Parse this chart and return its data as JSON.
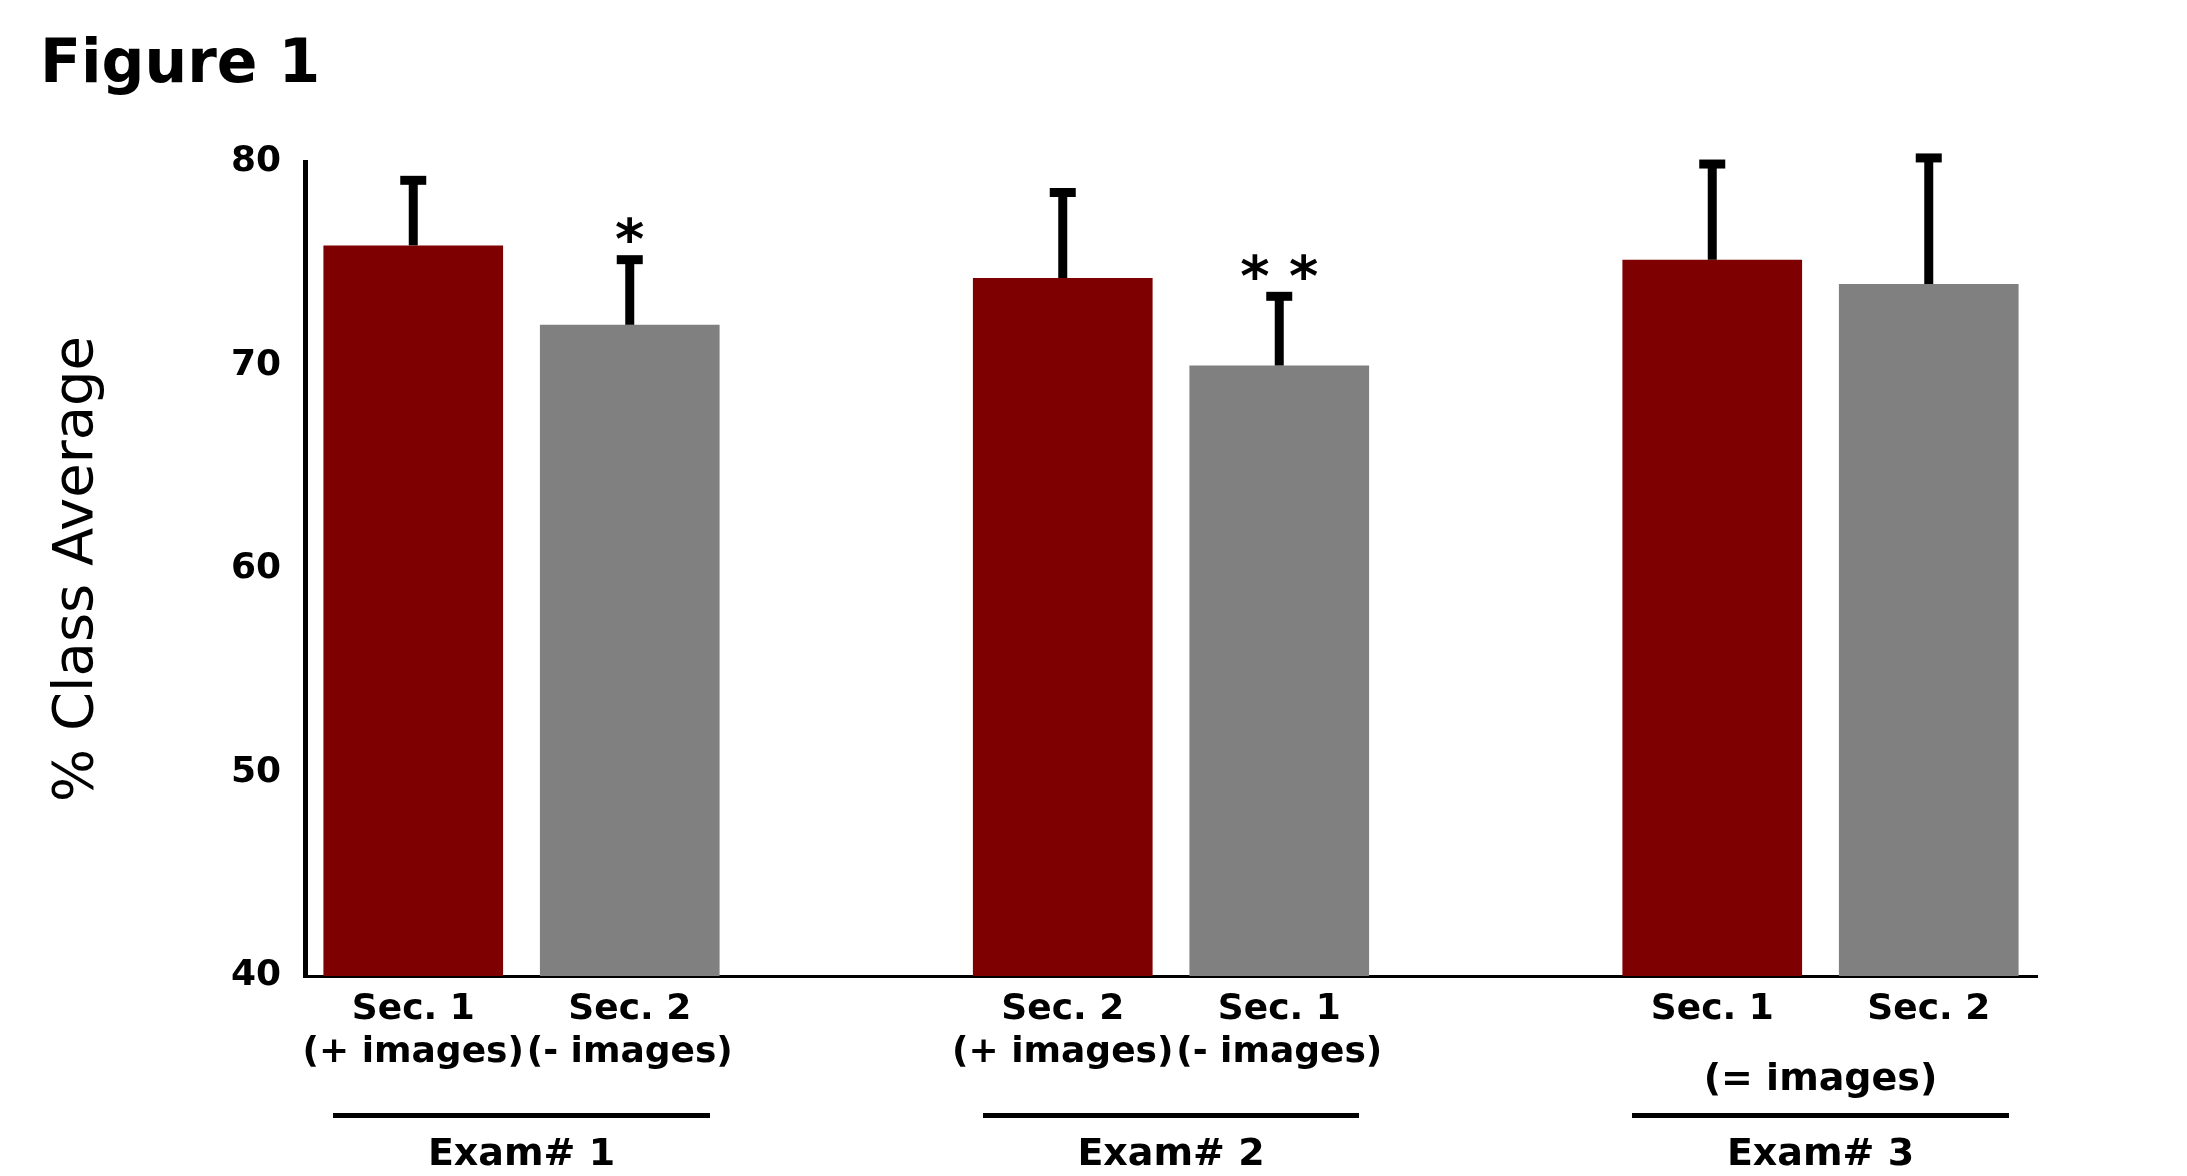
{
  "chart_data": {
    "type": "bar",
    "title": "Figure 1",
    "ylabel": "% Class Average",
    "categories": [
      "Sec. 1\n(+ images)",
      "Sec. 2\n(- images)",
      null,
      "Sec. 2\n(+ images)",
      "Sec. 1\n(- images)",
      null,
      "Sec. 1",
      "Sec. 2"
    ],
    "values": [
      75.9,
      72.0,
      null,
      74.3,
      70.0,
      null,
      75.2,
      74.0
    ],
    "colors": [
      "#7f0000",
      "#808080",
      null,
      "#7f0000",
      "#808080",
      null,
      "#7f0000",
      "#808080"
    ],
    "errors": [
      3.2,
      3.2,
      null,
      4.2,
      3.4,
      null,
      4.7,
      6.2
    ],
    "ylim": [
      40,
      80
    ],
    "yticks": [
      40,
      50,
      60,
      70,
      80
    ],
    "grid": false,
    "legend": false,
    "annotations": [
      "(= images)",
      "Exam# 1",
      "Exam# 2",
      "Exam# 3",
      {
        "text": "*",
        "x": "Sec. 2\n(- images)",
        "y": 75.2
      },
      {
        "text": "* *",
        "x": "Sec. 1\n(- images)",
        "y": 73.4
      }
    ]
  }
}
